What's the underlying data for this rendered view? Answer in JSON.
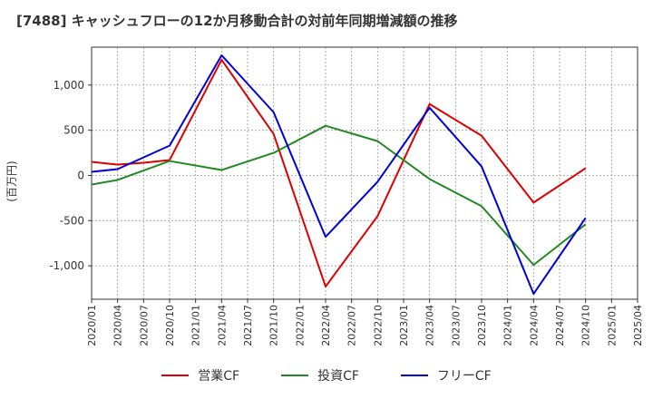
{
  "chart_data": {
    "type": "line",
    "title": "[7488]  キャッシュフローの12か月移動合計の対前年同期増減額の推移",
    "ylabel": "(百万円)",
    "xlabel": "",
    "x": [
      "2020/01",
      "2020/04",
      "2020/07",
      "2020/10",
      "2021/01",
      "2021/04",
      "2021/07",
      "2021/10",
      "2022/01",
      "2022/04",
      "2022/07",
      "2022/10",
      "2023/01",
      "2023/04",
      "2023/07",
      "2023/10",
      "2024/01",
      "2024/04",
      "2024/07",
      "2024/10",
      "2025/01",
      "2025/04"
    ],
    "ylim": [
      -1370,
      1420
    ],
    "yticks": [
      1000,
      500,
      0,
      -500,
      -1000
    ],
    "ytick_labels": [
      "1,000",
      "500",
      "0",
      "-500",
      "-1,000"
    ],
    "grid": true,
    "legend_position": "bottom",
    "series": [
      {
        "name": "営業CF",
        "color": "#dd0000",
        "values": [
          150,
          120,
          140,
          170,
          null,
          1280,
          null,
          460,
          null,
          -1230,
          null,
          -450,
          null,
          790,
          null,
          440,
          null,
          -300,
          null,
          80,
          null,
          null
        ]
      },
      {
        "name": "投資CF",
        "color": "#228822",
        "values": [
          -100,
          -50,
          null,
          160,
          null,
          60,
          null,
          250,
          null,
          550,
          null,
          380,
          null,
          -40,
          null,
          -340,
          null,
          -990,
          null,
          -540,
          null,
          null
        ]
      },
      {
        "name": "フリーCF",
        "color": "#0000dd",
        "values": [
          40,
          70,
          null,
          330,
          null,
          1330,
          null,
          700,
          null,
          -680,
          null,
          -70,
          null,
          750,
          null,
          100,
          null,
          -1310,
          null,
          -470,
          null,
          null
        ]
      }
    ]
  }
}
